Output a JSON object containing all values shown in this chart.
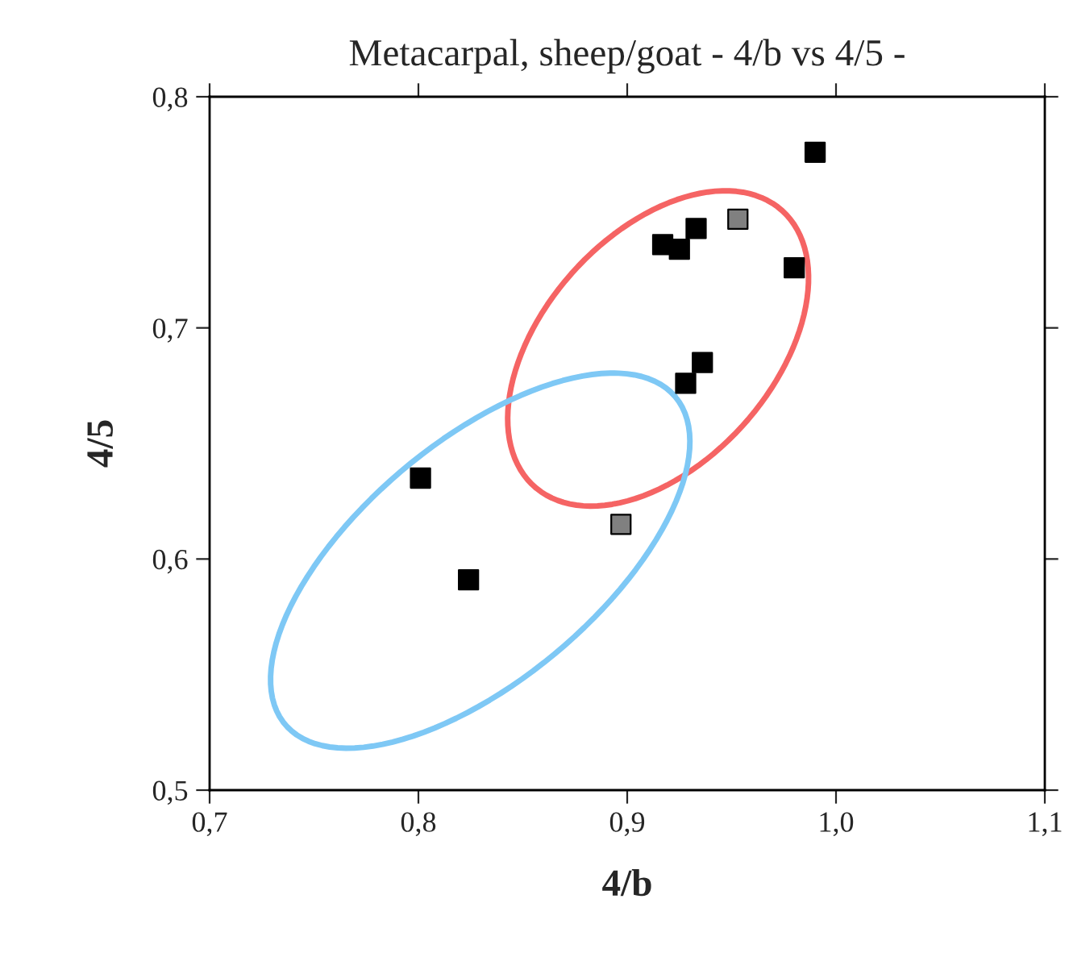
{
  "chart_data": {
    "type": "scatter",
    "title": "Metacarpal, sheep/goat - 4/b vs 4/5 -",
    "xlabel": "4/b",
    "ylabel": "4/5",
    "xlim": [
      0.7,
      1.1
    ],
    "ylim": [
      0.5,
      0.8
    ],
    "xticks": [
      {
        "value": 0.7,
        "label": "0,7"
      },
      {
        "value": 0.8,
        "label": "0,8"
      },
      {
        "value": 0.9,
        "label": "0,9"
      },
      {
        "value": 1.0,
        "label": "1,0"
      },
      {
        "value": 1.1,
        "label": "1,1"
      }
    ],
    "yticks": [
      {
        "value": 0.5,
        "label": "0,5"
      },
      {
        "value": 0.6,
        "label": "0,6"
      },
      {
        "value": 0.7,
        "label": "0,7"
      },
      {
        "value": 0.8,
        "label": "0,8"
      }
    ],
    "grid": false,
    "legend": false,
    "series": [
      {
        "type": "scatter",
        "marker": "square",
        "x": [
          0.801,
          0.824,
          0.897,
          0.928,
          0.936,
          0.917,
          0.925,
          0.933,
          0.953,
          0.98,
          0.99
        ],
        "values": [
          0.635,
          0.591,
          0.615,
          0.676,
          0.685,
          0.736,
          0.734,
          0.743,
          0.747,
          0.726,
          0.776
        ],
        "colors": [
          "#000000",
          "#000000",
          "#808080",
          "#000000",
          "#000000",
          "#000000",
          "#000000",
          "#000000",
          "#808080",
          "#000000",
          "#000000"
        ]
      }
    ]
  }
}
